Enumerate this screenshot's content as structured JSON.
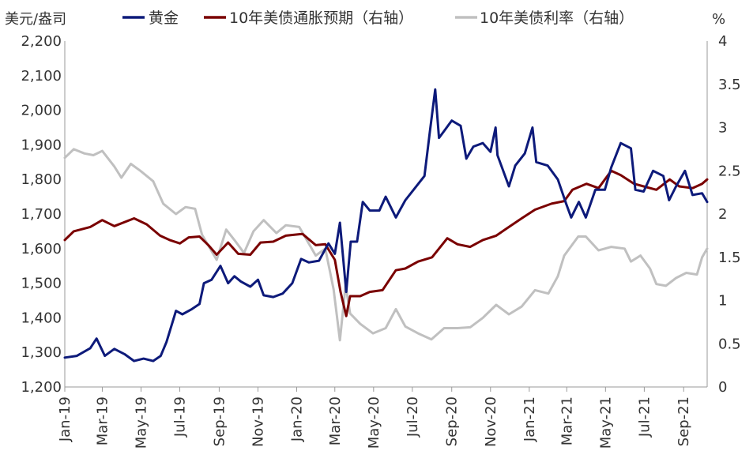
{
  "chart_data": {
    "type": "line",
    "title": "",
    "ylabel_left": "美元/盎司",
    "ylabel_right": "%",
    "ylim_left": [
      1200,
      2200
    ],
    "ylim_right": [
      0,
      4
    ],
    "yticks_left": [
      "1,200",
      "1,300",
      "1,400",
      "1,500",
      "1,600",
      "1,700",
      "1,800",
      "1,900",
      "2,000",
      "2,100",
      "2,200"
    ],
    "yticks_right": [
      "0",
      "0.5",
      "1",
      "1.5",
      "2",
      "2.5",
      "3",
      "3.5",
      "4"
    ],
    "x_labels": [
      "Jan-19",
      "Mar-19",
      "May-19",
      "Jul-19",
      "Sep-19",
      "Nov-19",
      "Jan-20",
      "Mar-20",
      "May-20",
      "Jul-20",
      "Sep-20",
      "Nov-20",
      "Jan-21",
      "Mar-21",
      "May-21",
      "Jul-21",
      "Sep-21"
    ],
    "x_range": [
      "2019-01-01",
      "2021-10-08"
    ],
    "legend_position": "top",
    "grid": false,
    "series": [
      {
        "name": "黄金",
        "axis": "left",
        "color": "#0d1a7a",
        "points": [
          [
            "2019-01-01",
            1285
          ],
          [
            "2019-01-20",
            1290
          ],
          [
            "2019-02-10",
            1312
          ],
          [
            "2019-02-20",
            1340
          ],
          [
            "2019-03-05",
            1290
          ],
          [
            "2019-03-20",
            1310
          ],
          [
            "2019-04-05",
            1295
          ],
          [
            "2019-04-20",
            1275
          ],
          [
            "2019-05-05",
            1282
          ],
          [
            "2019-05-20",
            1275
          ],
          [
            "2019-06-01",
            1290
          ],
          [
            "2019-06-10",
            1330
          ],
          [
            "2019-06-20",
            1390
          ],
          [
            "2019-06-25",
            1420
          ],
          [
            "2019-07-05",
            1410
          ],
          [
            "2019-07-20",
            1425
          ],
          [
            "2019-08-01",
            1440
          ],
          [
            "2019-08-08",
            1500
          ],
          [
            "2019-08-20",
            1510
          ],
          [
            "2019-09-03",
            1550
          ],
          [
            "2019-09-15",
            1500
          ],
          [
            "2019-09-25",
            1520
          ],
          [
            "2019-10-05",
            1505
          ],
          [
            "2019-10-20",
            1490
          ],
          [
            "2019-11-01",
            1510
          ],
          [
            "2019-11-10",
            1465
          ],
          [
            "2019-11-25",
            1460
          ],
          [
            "2019-12-10",
            1470
          ],
          [
            "2019-12-25",
            1500
          ],
          [
            "2020-01-08",
            1570
          ],
          [
            "2020-01-20",
            1560
          ],
          [
            "2020-02-05",
            1565
          ],
          [
            "2020-02-20",
            1615
          ],
          [
            "2020-03-01",
            1585
          ],
          [
            "2020-03-09",
            1675
          ],
          [
            "2020-03-19",
            1475
          ],
          [
            "2020-03-26",
            1620
          ],
          [
            "2020-04-05",
            1620
          ],
          [
            "2020-04-14",
            1735
          ],
          [
            "2020-04-25",
            1710
          ],
          [
            "2020-05-10",
            1710
          ],
          [
            "2020-05-20",
            1750
          ],
          [
            "2020-06-05",
            1690
          ],
          [
            "2020-06-20",
            1740
          ],
          [
            "2020-07-05",
            1775
          ],
          [
            "2020-07-20",
            1810
          ],
          [
            "2020-07-28",
            1930
          ],
          [
            "2020-08-06",
            2060
          ],
          [
            "2020-08-12",
            1920
          ],
          [
            "2020-08-20",
            1940
          ],
          [
            "2020-09-01",
            1970
          ],
          [
            "2020-09-15",
            1955
          ],
          [
            "2020-09-24",
            1860
          ],
          [
            "2020-10-05",
            1895
          ],
          [
            "2020-10-20",
            1905
          ],
          [
            "2020-11-01",
            1880
          ],
          [
            "2020-11-09",
            1950
          ],
          [
            "2020-11-12",
            1870
          ],
          [
            "2020-11-30",
            1780
          ],
          [
            "2020-12-10",
            1840
          ],
          [
            "2020-12-25",
            1875
          ],
          [
            "2021-01-06",
            1950
          ],
          [
            "2021-01-12",
            1850
          ],
          [
            "2021-01-30",
            1840
          ],
          [
            "2021-02-15",
            1800
          ],
          [
            "2021-02-28",
            1730
          ],
          [
            "2021-03-08",
            1690
          ],
          [
            "2021-03-20",
            1735
          ],
          [
            "2021-03-31",
            1690
          ],
          [
            "2021-04-15",
            1770
          ],
          [
            "2021-04-30",
            1770
          ],
          [
            "2021-05-10",
            1835
          ],
          [
            "2021-05-25",
            1905
          ],
          [
            "2021-06-10",
            1890
          ],
          [
            "2021-06-17",
            1770
          ],
          [
            "2021-06-30",
            1765
          ],
          [
            "2021-07-15",
            1825
          ],
          [
            "2021-07-31",
            1810
          ],
          [
            "2021-08-09",
            1740
          ],
          [
            "2021-08-20",
            1780
          ],
          [
            "2021-09-03",
            1825
          ],
          [
            "2021-09-15",
            1755
          ],
          [
            "2021-09-30",
            1760
          ],
          [
            "2021-10-08",
            1735
          ]
        ]
      },
      {
        "name": "10年美债通胀预期（右轴）",
        "axis": "right",
        "color": "#7a0000",
        "points": [
          [
            "2019-01-01",
            1.7
          ],
          [
            "2019-01-15",
            1.8
          ],
          [
            "2019-02-10",
            1.85
          ],
          [
            "2019-03-01",
            1.93
          ],
          [
            "2019-03-20",
            1.86
          ],
          [
            "2019-04-20",
            1.95
          ],
          [
            "2019-05-10",
            1.88
          ],
          [
            "2019-05-31",
            1.75
          ],
          [
            "2019-06-15",
            1.7
          ],
          [
            "2019-07-01",
            1.66
          ],
          [
            "2019-07-15",
            1.73
          ],
          [
            "2019-08-01",
            1.74
          ],
          [
            "2019-08-15",
            1.64
          ],
          [
            "2019-08-28",
            1.53
          ],
          [
            "2019-09-15",
            1.67
          ],
          [
            "2019-10-01",
            1.54
          ],
          [
            "2019-10-20",
            1.53
          ],
          [
            "2019-11-05",
            1.67
          ],
          [
            "2019-11-25",
            1.68
          ],
          [
            "2019-12-15",
            1.75
          ],
          [
            "2020-01-10",
            1.77
          ],
          [
            "2020-01-31",
            1.64
          ],
          [
            "2020-02-15",
            1.65
          ],
          [
            "2020-03-01",
            1.47
          ],
          [
            "2020-03-10",
            1.1
          ],
          [
            "2020-03-19",
            0.82
          ],
          [
            "2020-03-25",
            1.05
          ],
          [
            "2020-04-10",
            1.05
          ],
          [
            "2020-04-25",
            1.1
          ],
          [
            "2020-05-15",
            1.12
          ],
          [
            "2020-06-05",
            1.35
          ],
          [
            "2020-06-20",
            1.37
          ],
          [
            "2020-07-10",
            1.45
          ],
          [
            "2020-08-01",
            1.5
          ],
          [
            "2020-08-25",
            1.72
          ],
          [
            "2020-09-10",
            1.65
          ],
          [
            "2020-09-30",
            1.62
          ],
          [
            "2020-10-20",
            1.7
          ],
          [
            "2020-11-10",
            1.75
          ],
          [
            "2020-11-30",
            1.85
          ],
          [
            "2020-12-20",
            1.95
          ],
          [
            "2021-01-10",
            2.05
          ],
          [
            "2021-02-05",
            2.12
          ],
          [
            "2021-02-25",
            2.15
          ],
          [
            "2021-03-10",
            2.28
          ],
          [
            "2021-04-01",
            2.35
          ],
          [
            "2021-04-20",
            2.3
          ],
          [
            "2021-05-10",
            2.5
          ],
          [
            "2021-05-25",
            2.45
          ],
          [
            "2021-06-15",
            2.35
          ],
          [
            "2021-06-30",
            2.32
          ],
          [
            "2021-07-20",
            2.28
          ],
          [
            "2021-08-10",
            2.4
          ],
          [
            "2021-08-25",
            2.32
          ],
          [
            "2021-09-15",
            2.3
          ],
          [
            "2021-09-30",
            2.35
          ],
          [
            "2021-10-08",
            2.4
          ]
        ]
      },
      {
        "name": "10年美债利率（右轴）",
        "axis": "right",
        "color": "#c0c0c0",
        "points": [
          [
            "2019-01-01",
            2.65
          ],
          [
            "2019-01-15",
            2.75
          ],
          [
            "2019-02-01",
            2.7
          ],
          [
            "2019-02-15",
            2.68
          ],
          [
            "2019-03-01",
            2.73
          ],
          [
            "2019-03-20",
            2.55
          ],
          [
            "2019-03-31",
            2.42
          ],
          [
            "2019-04-15",
            2.58
          ],
          [
            "2019-04-30",
            2.5
          ],
          [
            "2019-05-20",
            2.38
          ],
          [
            "2019-06-05",
            2.12
          ],
          [
            "2019-06-25",
            2.0
          ],
          [
            "2019-07-10",
            2.08
          ],
          [
            "2019-07-25",
            2.06
          ],
          [
            "2019-08-05",
            1.76
          ],
          [
            "2019-08-28",
            1.47
          ],
          [
            "2019-09-12",
            1.82
          ],
          [
            "2019-09-25",
            1.7
          ],
          [
            "2019-10-10",
            1.55
          ],
          [
            "2019-10-25",
            1.8
          ],
          [
            "2019-11-10",
            1.93
          ],
          [
            "2019-11-30",
            1.78
          ],
          [
            "2019-12-15",
            1.87
          ],
          [
            "2020-01-05",
            1.85
          ],
          [
            "2020-01-31",
            1.52
          ],
          [
            "2020-02-15",
            1.6
          ],
          [
            "2020-02-28",
            1.13
          ],
          [
            "2020-03-09",
            0.54
          ],
          [
            "2020-03-18",
            1.18
          ],
          [
            "2020-03-25",
            0.85
          ],
          [
            "2020-04-10",
            0.73
          ],
          [
            "2020-04-30",
            0.62
          ],
          [
            "2020-05-20",
            0.68
          ],
          [
            "2020-06-05",
            0.9
          ],
          [
            "2020-06-20",
            0.7
          ],
          [
            "2020-07-10",
            0.62
          ],
          [
            "2020-07-31",
            0.55
          ],
          [
            "2020-08-20",
            0.68
          ],
          [
            "2020-09-10",
            0.68
          ],
          [
            "2020-09-30",
            0.69
          ],
          [
            "2020-10-20",
            0.8
          ],
          [
            "2020-11-10",
            0.95
          ],
          [
            "2020-11-30",
            0.84
          ],
          [
            "2020-12-20",
            0.93
          ],
          [
            "2021-01-10",
            1.12
          ],
          [
            "2021-01-31",
            1.08
          ],
          [
            "2021-02-15",
            1.28
          ],
          [
            "2021-02-25",
            1.52
          ],
          [
            "2021-03-19",
            1.74
          ],
          [
            "2021-03-31",
            1.74
          ],
          [
            "2021-04-20",
            1.58
          ],
          [
            "2021-05-10",
            1.62
          ],
          [
            "2021-05-31",
            1.6
          ],
          [
            "2021-06-10",
            1.45
          ],
          [
            "2021-06-25",
            1.52
          ],
          [
            "2021-07-10",
            1.37
          ],
          [
            "2021-07-20",
            1.19
          ],
          [
            "2021-08-04",
            1.17
          ],
          [
            "2021-08-20",
            1.26
          ],
          [
            "2021-09-05",
            1.32
          ],
          [
            "2021-09-22",
            1.3
          ],
          [
            "2021-09-30",
            1.5
          ],
          [
            "2021-10-08",
            1.6
          ]
        ]
      }
    ]
  }
}
